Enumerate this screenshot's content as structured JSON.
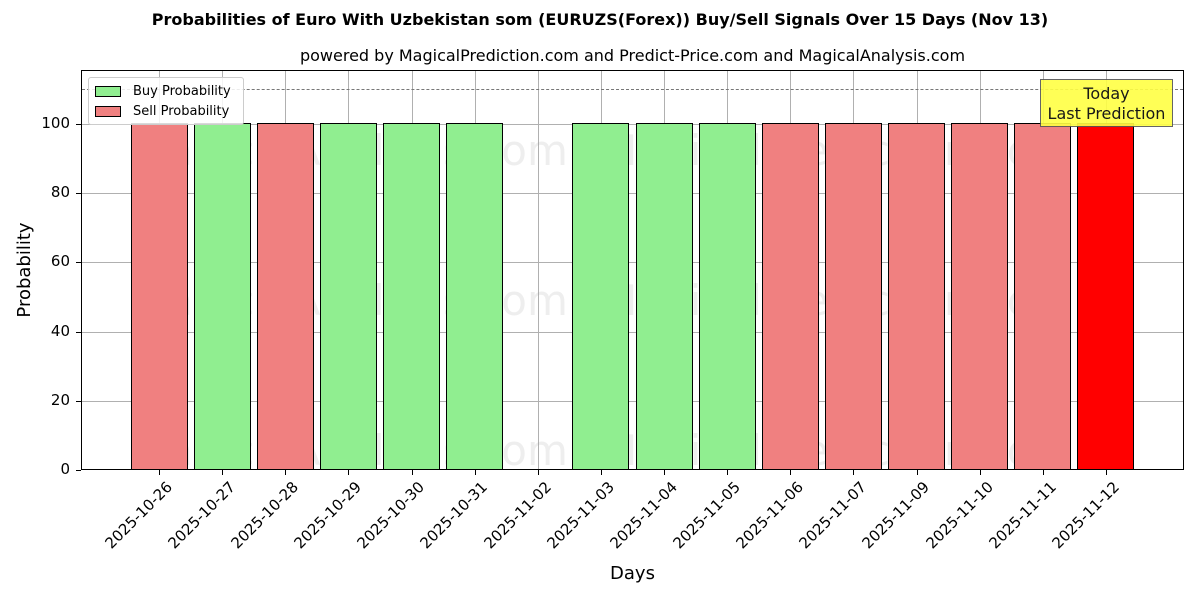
{
  "chart_data": {
    "type": "bar",
    "title": "Probabilities of Euro With Uzbekistan som (EURUZS(Forex)) Buy/Sell Signals Over 15 Days (Nov 13)",
    "subtitle": "powered by MagicalPrediction.com and Predict-Price.com and MagicalAnalysis.com",
    "xlabel": "Days",
    "ylabel": "Probability",
    "ylim": [
      0,
      115
    ],
    "yticks": [
      0,
      20,
      40,
      60,
      80,
      100
    ],
    "grid": true,
    "legend_position": "upper left",
    "reference_line": {
      "y": 110,
      "style": "dashed",
      "color": "#777777"
    },
    "categories": [
      "2025-10-26",
      "2025-10-27",
      "2025-10-28",
      "2025-10-29",
      "2025-10-30",
      "2025-10-31",
      "2025-11-02",
      "2025-11-03",
      "2025-11-04",
      "2025-11-05",
      "2025-11-06",
      "2025-11-07",
      "2025-11-09",
      "2025-11-10",
      "2025-11-11",
      "2025-11-12"
    ],
    "series": [
      {
        "name": "Buy Probability",
        "color": "#90ee90",
        "values": [
          0,
          100,
          0,
          100,
          100,
          100,
          0,
          100,
          100,
          100,
          0,
          0,
          0,
          0,
          0,
          0
        ]
      },
      {
        "name": "Sell Probability",
        "color": "#f08080",
        "values": [
          100,
          0,
          100,
          0,
          0,
          0,
          0,
          0,
          0,
          0,
          100,
          100,
          100,
          100,
          100,
          100
        ]
      }
    ],
    "bars": [
      {
        "date": "2025-10-26",
        "signal": "sell",
        "value": 100,
        "color": "#f08080"
      },
      {
        "date": "2025-10-27",
        "signal": "buy",
        "value": 100,
        "color": "#90ee90"
      },
      {
        "date": "2025-10-28",
        "signal": "sell",
        "value": 100,
        "color": "#f08080"
      },
      {
        "date": "2025-10-29",
        "signal": "buy",
        "value": 100,
        "color": "#90ee90"
      },
      {
        "date": "2025-10-30",
        "signal": "buy",
        "value": 100,
        "color": "#90ee90"
      },
      {
        "date": "2025-10-31",
        "signal": "buy",
        "value": 100,
        "color": "#90ee90"
      },
      {
        "date": "2025-11-02",
        "signal": "none",
        "value": 0,
        "color": "none"
      },
      {
        "date": "2025-11-03",
        "signal": "buy",
        "value": 100,
        "color": "#90ee90"
      },
      {
        "date": "2025-11-04",
        "signal": "buy",
        "value": 100,
        "color": "#90ee90"
      },
      {
        "date": "2025-11-05",
        "signal": "buy",
        "value": 100,
        "color": "#90ee90"
      },
      {
        "date": "2025-11-06",
        "signal": "sell",
        "value": 100,
        "color": "#f08080"
      },
      {
        "date": "2025-11-07",
        "signal": "sell",
        "value": 100,
        "color": "#f08080"
      },
      {
        "date": "2025-11-09",
        "signal": "sell",
        "value": 100,
        "color": "#f08080"
      },
      {
        "date": "2025-11-10",
        "signal": "sell",
        "value": 100,
        "color": "#f08080"
      },
      {
        "date": "2025-11-11",
        "signal": "sell",
        "value": 100,
        "color": "#f08080"
      },
      {
        "date": "2025-11-12",
        "signal": "sell",
        "value": 100,
        "color": "#ff0000",
        "highlight": true
      }
    ],
    "annotation": {
      "text_line1": "Today",
      "text_line2": "Last Prediction",
      "color": "#ffff44"
    },
    "watermarks": [
      "MagicalAnalysis.com",
      "MagicalPrediction.com"
    ]
  },
  "legend": {
    "buy_label": "Buy Probability",
    "sell_label": "Sell Probability"
  }
}
